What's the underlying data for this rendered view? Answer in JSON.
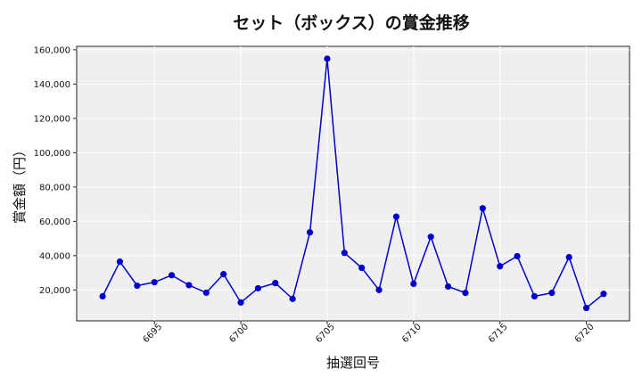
{
  "chart_data": {
    "type": "line",
    "title": "セット（ボックス）の賞金推移",
    "xlabel": "抽選回号",
    "ylabel": "賞金額（円）",
    "xlim": [
      6690.5,
      6722.5
    ],
    "ylim": [
      2000,
      162000
    ],
    "x_ticks": [
      6695,
      6700,
      6705,
      6710,
      6715,
      6720
    ],
    "y_ticks": [
      20000,
      40000,
      60000,
      80000,
      100000,
      120000,
      140000,
      160000
    ],
    "y_tick_labels": [
      "20,000",
      "40,000",
      "60,000",
      "80,000",
      "100,000",
      "120,000",
      "140,000",
      "160,000"
    ],
    "grid": true,
    "series": [
      {
        "color": "#0000cc",
        "x": [
          6692,
          6693,
          6694,
          6695,
          6696,
          6697,
          6698,
          6699,
          6700,
          6701,
          6702,
          6703,
          6704,
          6705,
          6706,
          6707,
          6708,
          6709,
          6710,
          6711,
          6712,
          6713,
          6714,
          6715,
          6716,
          6717,
          6718,
          6719,
          6720,
          6721
        ],
        "y": [
          16300,
          36500,
          22500,
          24500,
          28600,
          22800,
          18400,
          29200,
          12700,
          21000,
          24000,
          14800,
          53600,
          154800,
          41600,
          32900,
          20000,
          62700,
          23600,
          51000,
          22000,
          18300,
          67600,
          33800,
          39700,
          16300,
          18300,
          39100,
          9500,
          17700
        ]
      }
    ]
  }
}
